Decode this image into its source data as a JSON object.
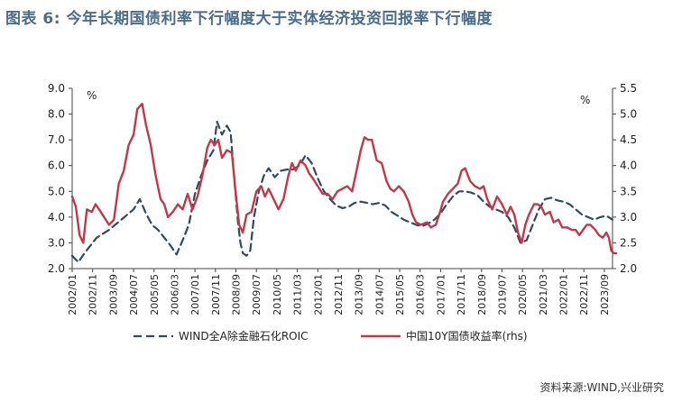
{
  "title": "图表 6:    今年长期国债利率下行幅度大于实体经济投资回报率下行幅度",
  "source": "资料来源:WIND,兴业研究",
  "colors": {
    "title": "#4c6d8a",
    "roic": "#2f4a62",
    "yield": "#c0394a",
    "axis": "#444444"
  },
  "chart_data": {
    "type": "line",
    "left_unit": "%",
    "right_unit": "%",
    "ylim_left": [
      2.0,
      9.0
    ],
    "yticks_left": [
      "2.0",
      "3.0",
      "4.0",
      "5.0",
      "6.0",
      "7.0",
      "8.0",
      "9.0"
    ],
    "ylim_right": [
      2.0,
      5.5
    ],
    "yticks_right": [
      "2.0",
      "2.5",
      "3.0",
      "3.5",
      "4.0",
      "4.5",
      "5.0",
      "5.5"
    ],
    "xlim": [
      2002.0,
      2024.0
    ],
    "xtick_labels": [
      "2002/01",
      "2002/11",
      "2003/09",
      "2004/07",
      "2005/05",
      "2006/03",
      "2007/01",
      "2007/11",
      "2008/09",
      "2009/07",
      "2010/05",
      "2011/03",
      "2012/01",
      "2012/11",
      "2013/09",
      "2014/07",
      "2015/05",
      "2016/03",
      "2017/01",
      "2017/11",
      "2018/09",
      "2019/07",
      "2020/05",
      "2021/03",
      "2022/01",
      "2022/11",
      "2023/09"
    ],
    "series": [
      {
        "name": "WIND全A除金融石化ROIC",
        "axis": "left",
        "style": "dashed",
        "points": [
          [
            2002.0,
            2.5
          ],
          [
            2002.25,
            2.25
          ],
          [
            2002.5,
            2.6
          ],
          [
            2002.75,
            2.9
          ],
          [
            2003.0,
            3.2
          ],
          [
            2003.5,
            3.5
          ],
          [
            2004.0,
            3.9
          ],
          [
            2004.5,
            4.3
          ],
          [
            2004.75,
            4.7
          ],
          [
            2005.0,
            4.15
          ],
          [
            2005.25,
            3.7
          ],
          [
            2005.5,
            3.5
          ],
          [
            2005.75,
            3.2
          ],
          [
            2006.0,
            2.9
          ],
          [
            2006.25,
            2.55
          ],
          [
            2006.5,
            3.1
          ],
          [
            2006.75,
            3.7
          ],
          [
            2007.0,
            4.9
          ],
          [
            2007.25,
            5.6
          ],
          [
            2007.5,
            6.2
          ],
          [
            2007.75,
            6.6
          ],
          [
            2007.9,
            7.7
          ],
          [
            2008.1,
            7.2
          ],
          [
            2008.3,
            7.55
          ],
          [
            2008.45,
            7.3
          ],
          [
            2008.6,
            5.5
          ],
          [
            2008.75,
            3.8
          ],
          [
            2008.85,
            3.0
          ],
          [
            2008.95,
            2.6
          ],
          [
            2009.1,
            2.5
          ],
          [
            2009.25,
            2.7
          ],
          [
            2009.4,
            4.0
          ],
          [
            2009.6,
            5.0
          ],
          [
            2009.8,
            5.6
          ],
          [
            2010.0,
            5.9
          ],
          [
            2010.25,
            5.55
          ],
          [
            2010.5,
            5.8
          ],
          [
            2010.75,
            5.85
          ],
          [
            2011.0,
            5.85
          ],
          [
            2011.25,
            6.0
          ],
          [
            2011.5,
            6.4
          ],
          [
            2011.75,
            6.1
          ],
          [
            2012.0,
            5.5
          ],
          [
            2012.25,
            5.0
          ],
          [
            2012.5,
            4.7
          ],
          [
            2012.75,
            4.45
          ],
          [
            2013.0,
            4.35
          ],
          [
            2013.25,
            4.4
          ],
          [
            2013.5,
            4.55
          ],
          [
            2013.75,
            4.6
          ],
          [
            2014.0,
            4.55
          ],
          [
            2014.25,
            4.5
          ],
          [
            2014.5,
            4.55
          ],
          [
            2014.75,
            4.45
          ],
          [
            2015.0,
            4.2
          ],
          [
            2015.25,
            4.05
          ],
          [
            2015.5,
            3.9
          ],
          [
            2015.75,
            3.8
          ],
          [
            2016.0,
            3.7
          ],
          [
            2016.25,
            3.65
          ],
          [
            2016.5,
            3.75
          ],
          [
            2016.75,
            3.9
          ],
          [
            2017.0,
            4.15
          ],
          [
            2017.25,
            4.5
          ],
          [
            2017.5,
            4.8
          ],
          [
            2017.75,
            5.0
          ],
          [
            2018.0,
            5.0
          ],
          [
            2018.25,
            4.95
          ],
          [
            2018.5,
            4.85
          ],
          [
            2018.75,
            4.6
          ],
          [
            2019.0,
            4.4
          ],
          [
            2019.25,
            4.3
          ],
          [
            2019.5,
            4.2
          ],
          [
            2019.75,
            4.0
          ],
          [
            2020.0,
            3.6
          ],
          [
            2020.25,
            3.0
          ],
          [
            2020.5,
            3.1
          ],
          [
            2020.75,
            3.7
          ],
          [
            2021.0,
            4.3
          ],
          [
            2021.25,
            4.7
          ],
          [
            2021.5,
            4.75
          ],
          [
            2021.75,
            4.65
          ],
          [
            2022.0,
            4.6
          ],
          [
            2022.25,
            4.5
          ],
          [
            2022.5,
            4.3
          ],
          [
            2022.75,
            4.1
          ],
          [
            2023.0,
            4.0
          ],
          [
            2023.25,
            3.9
          ],
          [
            2023.5,
            4.0
          ],
          [
            2023.75,
            4.05
          ],
          [
            2024.0,
            3.9
          ]
        ]
      },
      {
        "name": "中国10Y国债收益率(rhs)",
        "axis": "right",
        "style": "solid",
        "points": [
          [
            2002.0,
            3.4
          ],
          [
            2002.15,
            3.2
          ],
          [
            2002.3,
            2.65
          ],
          [
            2002.45,
            2.5
          ],
          [
            2002.6,
            3.15
          ],
          [
            2002.8,
            3.1
          ],
          [
            2002.95,
            3.25
          ],
          [
            2003.1,
            3.15
          ],
          [
            2003.3,
            3.0
          ],
          [
            2003.5,
            2.85
          ],
          [
            2003.7,
            2.95
          ],
          [
            2003.9,
            3.65
          ],
          [
            2004.1,
            3.9
          ],
          [
            2004.3,
            4.4
          ],
          [
            2004.5,
            4.6
          ],
          [
            2004.65,
            5.1
          ],
          [
            2004.85,
            5.2
          ],
          [
            2005.0,
            4.8
          ],
          [
            2005.2,
            4.4
          ],
          [
            2005.4,
            3.8
          ],
          [
            2005.6,
            3.35
          ],
          [
            2005.75,
            3.25
          ],
          [
            2005.9,
            3.0
          ],
          [
            2006.1,
            3.1
          ],
          [
            2006.3,
            3.25
          ],
          [
            2006.5,
            3.15
          ],
          [
            2006.7,
            3.45
          ],
          [
            2006.9,
            3.15
          ],
          [
            2007.1,
            3.4
          ],
          [
            2007.3,
            3.8
          ],
          [
            2007.5,
            4.35
          ],
          [
            2007.65,
            4.5
          ],
          [
            2007.8,
            4.4
          ],
          [
            2007.95,
            4.5
          ],
          [
            2008.1,
            4.15
          ],
          [
            2008.3,
            4.3
          ],
          [
            2008.5,
            4.25
          ],
          [
            2008.65,
            3.5
          ],
          [
            2008.8,
            2.85
          ],
          [
            2008.95,
            2.7
          ],
          [
            2009.1,
            3.05
          ],
          [
            2009.3,
            3.1
          ],
          [
            2009.5,
            3.5
          ],
          [
            2009.7,
            3.6
          ],
          [
            2009.85,
            3.4
          ],
          [
            2010.0,
            3.55
          ],
          [
            2010.2,
            3.35
          ],
          [
            2010.4,
            3.15
          ],
          [
            2010.6,
            3.35
          ],
          [
            2010.8,
            3.8
          ],
          [
            2010.95,
            4.05
          ],
          [
            2011.1,
            3.9
          ],
          [
            2011.3,
            4.1
          ],
          [
            2011.5,
            4.0
          ],
          [
            2011.65,
            3.85
          ],
          [
            2011.8,
            3.75
          ],
          [
            2012.0,
            3.6
          ],
          [
            2012.2,
            3.45
          ],
          [
            2012.4,
            3.45
          ],
          [
            2012.6,
            3.35
          ],
          [
            2012.8,
            3.5
          ],
          [
            2013.0,
            3.55
          ],
          [
            2013.2,
            3.6
          ],
          [
            2013.4,
            3.5
          ],
          [
            2013.6,
            3.95
          ],
          [
            2013.75,
            4.3
          ],
          [
            2013.9,
            4.55
          ],
          [
            2014.05,
            4.5
          ],
          [
            2014.2,
            4.5
          ],
          [
            2014.4,
            4.1
          ],
          [
            2014.6,
            4.05
          ],
          [
            2014.8,
            3.7
          ],
          [
            2014.95,
            3.55
          ],
          [
            2015.1,
            3.5
          ],
          [
            2015.3,
            3.6
          ],
          [
            2015.5,
            3.5
          ],
          [
            2015.7,
            3.3
          ],
          [
            2015.85,
            3.05
          ],
          [
            2016.0,
            2.9
          ],
          [
            2016.2,
            2.85
          ],
          [
            2016.45,
            2.9
          ],
          [
            2016.6,
            2.8
          ],
          [
            2016.8,
            2.85
          ],
          [
            2016.95,
            3.05
          ],
          [
            2017.1,
            3.3
          ],
          [
            2017.3,
            3.45
          ],
          [
            2017.5,
            3.55
          ],
          [
            2017.7,
            3.65
          ],
          [
            2017.85,
            3.9
          ],
          [
            2018.0,
            3.95
          ],
          [
            2018.2,
            3.7
          ],
          [
            2018.4,
            3.6
          ],
          [
            2018.6,
            3.55
          ],
          [
            2018.75,
            3.6
          ],
          [
            2018.9,
            3.35
          ],
          [
            2019.1,
            3.15
          ],
          [
            2019.3,
            3.4
          ],
          [
            2019.5,
            3.25
          ],
          [
            2019.7,
            3.05
          ],
          [
            2019.85,
            3.2
          ],
          [
            2020.0,
            3.05
          ],
          [
            2020.15,
            2.7
          ],
          [
            2020.3,
            2.5
          ],
          [
            2020.45,
            2.85
          ],
          [
            2020.6,
            3.05
          ],
          [
            2020.8,
            3.25
          ],
          [
            2020.95,
            3.25
          ],
          [
            2021.1,
            3.2
          ],
          [
            2021.25,
            3.05
          ],
          [
            2021.45,
            3.1
          ],
          [
            2021.6,
            2.9
          ],
          [
            2021.8,
            2.95
          ],
          [
            2021.95,
            2.8
          ],
          [
            2022.15,
            2.8
          ],
          [
            2022.35,
            2.75
          ],
          [
            2022.5,
            2.75
          ],
          [
            2022.65,
            2.65
          ],
          [
            2022.8,
            2.75
          ],
          [
            2022.95,
            2.85
          ],
          [
            2023.1,
            2.85
          ],
          [
            2023.3,
            2.75
          ],
          [
            2023.45,
            2.65
          ],
          [
            2023.6,
            2.6
          ],
          [
            2023.75,
            2.7
          ],
          [
            2023.85,
            2.6
          ],
          [
            2023.95,
            2.35
          ],
          [
            2024.05,
            2.3
          ],
          [
            2024.15,
            2.3
          ]
        ]
      }
    ]
  }
}
